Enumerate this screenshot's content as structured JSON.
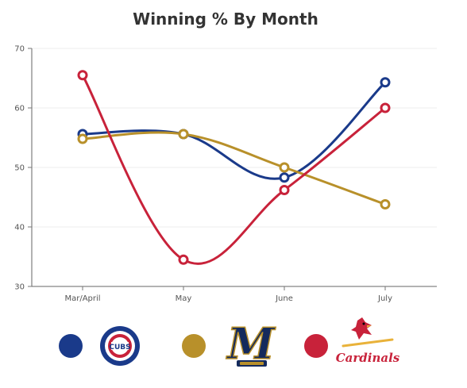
{
  "title": "Winning % By Month",
  "chart_data": {
    "type": "line",
    "title": "Winning % By Month",
    "categories": [
      "Mar/April",
      "May",
      "June",
      "July"
    ],
    "ylim": [
      30,
      70
    ],
    "yticks": [
      30,
      40,
      50,
      60,
      70
    ],
    "grid": true,
    "legend_position": "bottom",
    "series": [
      {
        "color": "#1a3a8a",
        "team": "Cubs",
        "values": [
          55.6,
          55.6,
          48.3,
          64.3
        ]
      },
      {
        "color": "#b8902a",
        "team": "Brewers",
        "values": [
          54.8,
          55.6,
          50.0,
          43.8
        ]
      },
      {
        "color": "#c8223a",
        "team": "Cardinals",
        "values": [
          65.5,
          34.5,
          46.2,
          60.0
        ]
      }
    ]
  },
  "legend": [
    {
      "color": "#1a3a8a",
      "team": "Cubs",
      "logo_text": "CUBS"
    },
    {
      "color": "#b8902a",
      "team": "Brewers",
      "logo_text": "M"
    },
    {
      "color": "#c8223a",
      "team": "Cardinals",
      "logo_text": "Cardinals"
    }
  ]
}
